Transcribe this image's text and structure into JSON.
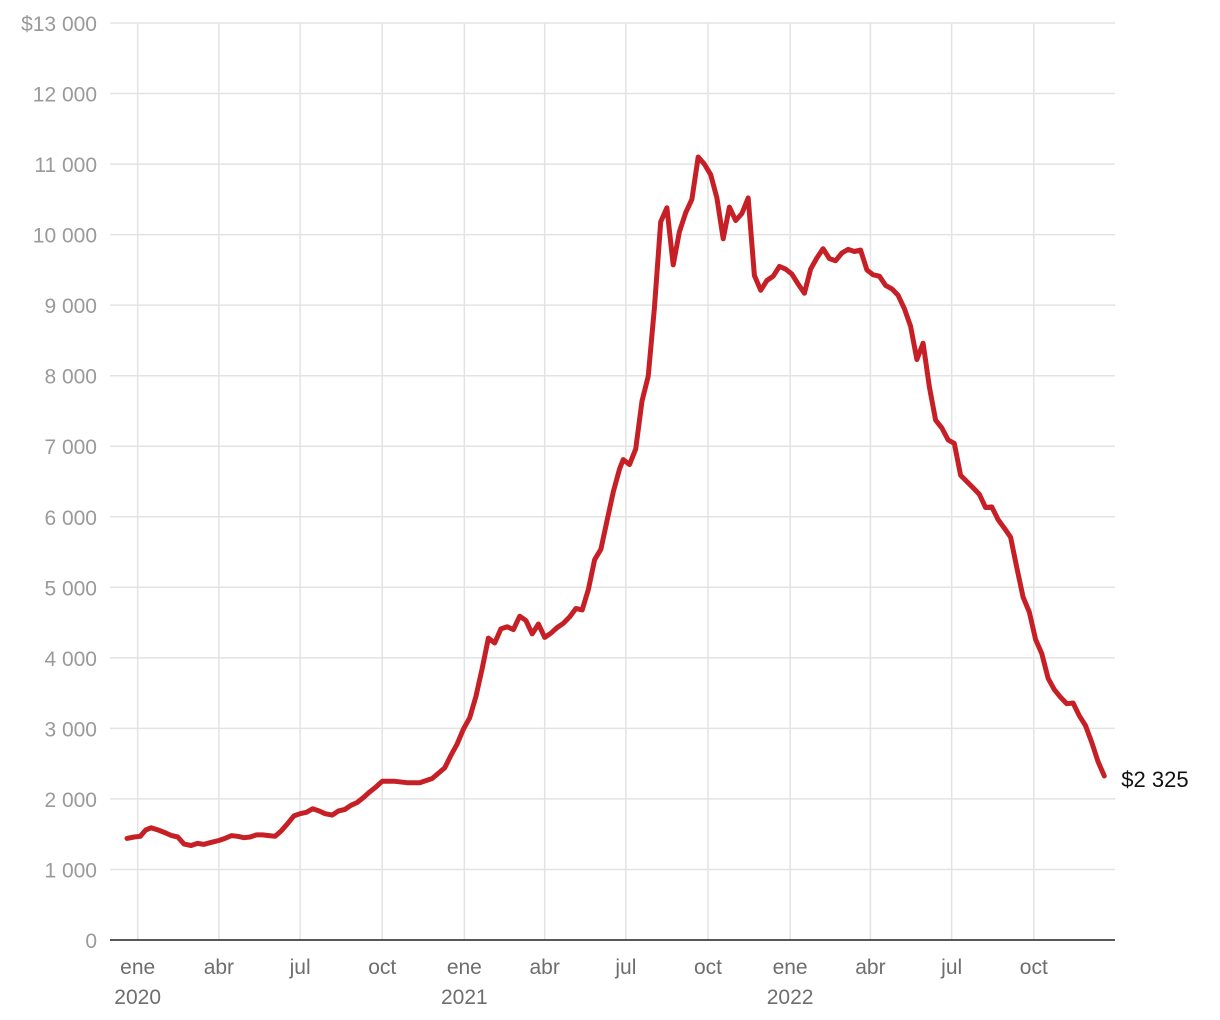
{
  "chart_data": {
    "type": "line",
    "title": "",
    "xlabel": "",
    "ylabel": "",
    "ylim": [
      0,
      13000
    ],
    "xlim": [
      "2019-12-01",
      "2022-12-31"
    ],
    "y_ticks": [
      {
        "value": 0,
        "label": "0"
      },
      {
        "value": 1000,
        "label": "1 000"
      },
      {
        "value": 2000,
        "label": "2 000"
      },
      {
        "value": 3000,
        "label": "3 000"
      },
      {
        "value": 4000,
        "label": "4 000"
      },
      {
        "value": 5000,
        "label": "5 000"
      },
      {
        "value": 6000,
        "label": "6 000"
      },
      {
        "value": 7000,
        "label": "7 000"
      },
      {
        "value": 8000,
        "label": "8 000"
      },
      {
        "value": 9000,
        "label": "9 000"
      },
      {
        "value": 10000,
        "label": "10 000"
      },
      {
        "value": 11000,
        "label": "11 000"
      },
      {
        "value": 12000,
        "label": "12 000"
      },
      {
        "value": 13000,
        "label": "$13 000"
      }
    ],
    "x_ticks": [
      {
        "date": "2020-01-01",
        "label": "ene",
        "year": "2020"
      },
      {
        "date": "2020-04-01",
        "label": "abr",
        "year": ""
      },
      {
        "date": "2020-07-01",
        "label": "jul",
        "year": ""
      },
      {
        "date": "2020-10-01",
        "label": "oct",
        "year": ""
      },
      {
        "date": "2021-01-01",
        "label": "ene",
        "year": "2021"
      },
      {
        "date": "2021-04-01",
        "label": "abr",
        "year": ""
      },
      {
        "date": "2021-07-01",
        "label": "jul",
        "year": ""
      },
      {
        "date": "2021-10-01",
        "label": "oct",
        "year": ""
      },
      {
        "date": "2022-01-01",
        "label": "ene",
        "year": "2022"
      },
      {
        "date": "2022-04-01",
        "label": "abr",
        "year": ""
      },
      {
        "date": "2022-07-01",
        "label": "jul",
        "year": ""
      },
      {
        "date": "2022-10-01",
        "label": "oct",
        "year": ""
      }
    ],
    "grid": true,
    "series": [
      {
        "color": "#c62026",
        "end_label": "$2 325",
        "points": [
          [
            "2019-12-20",
            1440
          ],
          [
            "2019-12-28",
            1460
          ],
          [
            "2020-01-04",
            1470
          ],
          [
            "2020-01-10",
            1560
          ],
          [
            "2020-01-16",
            1590
          ],
          [
            "2020-01-24",
            1560
          ],
          [
            "2020-02-01",
            1520
          ],
          [
            "2020-02-08",
            1480
          ],
          [
            "2020-02-15",
            1460
          ],
          [
            "2020-02-22",
            1360
          ],
          [
            "2020-03-01",
            1340
          ],
          [
            "2020-03-08",
            1370
          ],
          [
            "2020-03-15",
            1355
          ],
          [
            "2020-03-22",
            1380
          ],
          [
            "2020-04-01",
            1410
          ],
          [
            "2020-04-08",
            1440
          ],
          [
            "2020-04-15",
            1480
          ],
          [
            "2020-04-22",
            1470
          ],
          [
            "2020-04-29",
            1450
          ],
          [
            "2020-05-06",
            1460
          ],
          [
            "2020-05-13",
            1490
          ],
          [
            "2020-05-20",
            1490
          ],
          [
            "2020-05-27",
            1480
          ],
          [
            "2020-06-03",
            1470
          ],
          [
            "2020-06-10",
            1550
          ],
          [
            "2020-06-17",
            1650
          ],
          [
            "2020-06-24",
            1760
          ],
          [
            "2020-07-01",
            1790
          ],
          [
            "2020-07-08",
            1810
          ],
          [
            "2020-07-15",
            1860
          ],
          [
            "2020-07-22",
            1830
          ],
          [
            "2020-07-29",
            1790
          ],
          [
            "2020-08-06",
            1770
          ],
          [
            "2020-08-13",
            1830
          ],
          [
            "2020-08-20",
            1850
          ],
          [
            "2020-08-27",
            1910
          ],
          [
            "2020-09-03",
            1950
          ],
          [
            "2020-09-10",
            2020
          ],
          [
            "2020-09-17",
            2100
          ],
          [
            "2020-09-24",
            2170
          ],
          [
            "2020-10-01",
            2250
          ],
          [
            "2020-10-15",
            2250
          ],
          [
            "2020-10-29",
            2230
          ],
          [
            "2020-11-12",
            2230
          ],
          [
            "2020-11-26",
            2290
          ],
          [
            "2020-12-10",
            2440
          ],
          [
            "2020-12-17",
            2620
          ],
          [
            "2020-12-24",
            2780
          ],
          [
            "2020-12-31",
            2990
          ],
          [
            "2021-01-07",
            3150
          ],
          [
            "2021-01-14",
            3450
          ],
          [
            "2021-01-21",
            3850
          ],
          [
            "2021-01-28",
            4280
          ],
          [
            "2021-02-04",
            4210
          ],
          [
            "2021-02-11",
            4410
          ],
          [
            "2021-02-18",
            4440
          ],
          [
            "2021-02-25",
            4400
          ],
          [
            "2021-03-04",
            4590
          ],
          [
            "2021-03-11",
            4530
          ],
          [
            "2021-03-18",
            4340
          ],
          [
            "2021-03-25",
            4480
          ],
          [
            "2021-04-01",
            4290
          ],
          [
            "2021-04-08",
            4350
          ],
          [
            "2021-04-15",
            4430
          ],
          [
            "2021-04-22",
            4490
          ],
          [
            "2021-04-29",
            4580
          ],
          [
            "2021-05-06",
            4700
          ],
          [
            "2021-05-13",
            4680
          ],
          [
            "2021-05-20",
            4970
          ],
          [
            "2021-05-27",
            5390
          ],
          [
            "2021-06-03",
            5540
          ],
          [
            "2021-06-10",
            5950
          ],
          [
            "2021-06-17",
            6360
          ],
          [
            "2021-06-24",
            6680
          ],
          [
            "2021-06-28",
            6810
          ],
          [
            "2021-07-05",
            6740
          ],
          [
            "2021-07-12",
            6960
          ],
          [
            "2021-07-19",
            7640
          ],
          [
            "2021-07-26",
            7990
          ],
          [
            "2021-08-02",
            8960
          ],
          [
            "2021-08-09",
            10180
          ],
          [
            "2021-08-16",
            10380
          ],
          [
            "2021-08-23",
            9570
          ],
          [
            "2021-08-30",
            10040
          ],
          [
            "2021-09-06",
            10310
          ],
          [
            "2021-09-13",
            10500
          ],
          [
            "2021-09-20",
            11100
          ],
          [
            "2021-09-27",
            11000
          ],
          [
            "2021-10-04",
            10850
          ],
          [
            "2021-10-11",
            10520
          ],
          [
            "2021-10-18",
            9940
          ],
          [
            "2021-10-25",
            10390
          ],
          [
            "2021-11-01",
            10200
          ],
          [
            "2021-11-08",
            10300
          ],
          [
            "2021-11-15",
            10520
          ],
          [
            "2021-11-22",
            9420
          ],
          [
            "2021-11-29",
            9210
          ],
          [
            "2021-12-06",
            9350
          ],
          [
            "2021-12-13",
            9410
          ],
          [
            "2021-12-20",
            9550
          ],
          [
            "2021-12-27",
            9510
          ],
          [
            "2022-01-03",
            9440
          ],
          [
            "2022-01-10",
            9300
          ],
          [
            "2022-01-17",
            9170
          ],
          [
            "2022-01-24",
            9510
          ],
          [
            "2022-01-31",
            9670
          ],
          [
            "2022-02-07",
            9800
          ],
          [
            "2022-02-14",
            9660
          ],
          [
            "2022-02-21",
            9630
          ],
          [
            "2022-02-28",
            9740
          ],
          [
            "2022-03-07",
            9790
          ],
          [
            "2022-03-14",
            9760
          ],
          [
            "2022-03-21",
            9780
          ],
          [
            "2022-03-28",
            9500
          ],
          [
            "2022-04-04",
            9430
          ],
          [
            "2022-04-11",
            9410
          ],
          [
            "2022-04-18",
            9280
          ],
          [
            "2022-04-25",
            9230
          ],
          [
            "2022-05-02",
            9140
          ],
          [
            "2022-05-09",
            8950
          ],
          [
            "2022-05-16",
            8700
          ],
          [
            "2022-05-23",
            8230
          ],
          [
            "2022-05-30",
            8460
          ],
          [
            "2022-06-06",
            7840
          ],
          [
            "2022-06-13",
            7370
          ],
          [
            "2022-06-20",
            7260
          ],
          [
            "2022-06-27",
            7090
          ],
          [
            "2022-07-04",
            7040
          ],
          [
            "2022-07-11",
            6590
          ],
          [
            "2022-07-18",
            6500
          ],
          [
            "2022-07-25",
            6410
          ],
          [
            "2022-08-01",
            6320
          ],
          [
            "2022-08-08",
            6130
          ],
          [
            "2022-08-15",
            6140
          ],
          [
            "2022-08-22",
            5960
          ],
          [
            "2022-08-29",
            5840
          ],
          [
            "2022-09-05",
            5710
          ],
          [
            "2022-09-12",
            5280
          ],
          [
            "2022-09-19",
            4860
          ],
          [
            "2022-09-26",
            4650
          ],
          [
            "2022-10-03",
            4260
          ],
          [
            "2022-10-10",
            4060
          ],
          [
            "2022-10-17",
            3710
          ],
          [
            "2022-10-24",
            3550
          ],
          [
            "2022-10-31",
            3440
          ],
          [
            "2022-11-07",
            3350
          ],
          [
            "2022-11-14",
            3360
          ],
          [
            "2022-11-21",
            3180
          ],
          [
            "2022-11-28",
            3040
          ],
          [
            "2022-12-05",
            2800
          ],
          [
            "2022-12-12",
            2530
          ],
          [
            "2022-12-19",
            2325
          ]
        ]
      }
    ]
  }
}
